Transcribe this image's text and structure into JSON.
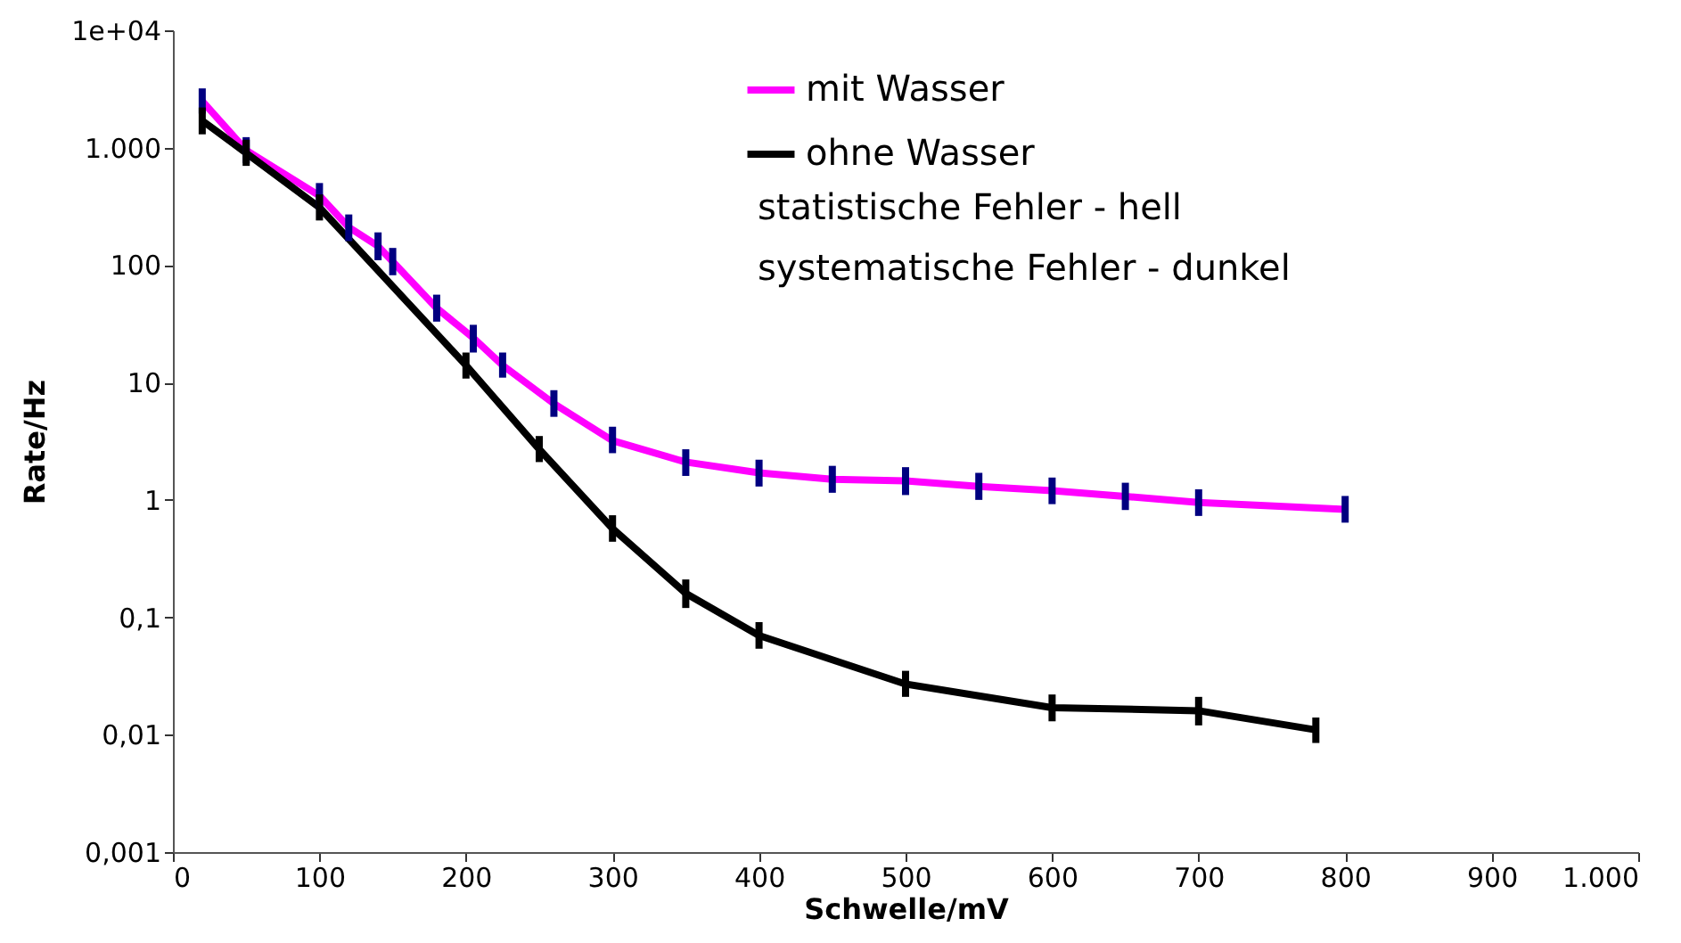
{
  "chart_data": {
    "type": "line",
    "xlabel": "Schwelle/mV",
    "ylabel": "Rate/Hz",
    "log": "y",
    "xlim": [
      0,
      1000
    ],
    "xticks": [
      0,
      100,
      200,
      300,
      400,
      500,
      600,
      700,
      800,
      900,
      {
        "value": 1000,
        "label": "1.000"
      }
    ],
    "ylim": [
      0.001,
      10000
    ],
    "yticks": [
      {
        "value": 0.001,
        "label": "0,001"
      },
      {
        "value": 0.01,
        "label": "0,01"
      },
      {
        "value": 0.1,
        "label": "0,1"
      },
      1,
      10,
      100,
      {
        "value": 1000,
        "label": "1.000"
      },
      {
        "value": 10000,
        "label": "1e+04"
      }
    ],
    "grid": false,
    "legend": "top",
    "marker": "none",
    "line_style": "solid",
    "annotations": [
      "statistische Fehler - hell",
      "systematische Fehler - dunkel"
    ],
    "series": [
      {
        "name": "mit Wasser",
        "color": "#ff00ff",
        "x": [
          20,
          50,
          100,
          120,
          140,
          150,
          180,
          205,
          225,
          260,
          300,
          350,
          400,
          450,
          500,
          550,
          600,
          650,
          700,
          800
        ],
        "values": [
          2500,
          950,
          390,
          210,
          145,
          107,
          43,
          24,
          14,
          6.6,
          3.2,
          2.1,
          1.7,
          1.5,
          1.45,
          1.3,
          1.2,
          1.07,
          0.95,
          0.83
        ],
        "errors": [
          [
            1950,
            3200
          ],
          [
            740,
            1230
          ],
          [
            300,
            500
          ],
          [
            160,
            270
          ],
          [
            110,
            190
          ],
          [
            82,
            140
          ],
          [
            33,
            56
          ],
          [
            18,
            31
          ],
          [
            11,
            18
          ],
          [
            5.1,
            8.6
          ],
          [
            2.5,
            4.2
          ],
          [
            1.6,
            2.7
          ],
          [
            1.3,
            2.2
          ],
          [
            1.15,
            1.95
          ],
          [
            1.1,
            1.9
          ],
          [
            1.0,
            1.7
          ],
          [
            0.92,
            1.55
          ],
          [
            0.82,
            1.4
          ],
          [
            0.73,
            1.23
          ],
          [
            0.64,
            1.08
          ]
        ]
      },
      {
        "name": "ohne Wasser",
        "color": "#000000",
        "x": [
          20,
          50,
          100,
          200,
          250,
          300,
          350,
          400,
          500,
          600,
          700,
          780
        ],
        "values": [
          1700,
          900,
          310,
          14,
          2.7,
          0.57,
          0.16,
          0.07,
          0.027,
          0.017,
          0.016,
          0.011
        ],
        "errors": [
          [
            1300,
            2200
          ],
          [
            700,
            1170
          ],
          [
            240,
            400
          ],
          [
            10.8,
            18
          ],
          [
            2.1,
            3.5
          ],
          [
            0.44,
            0.74
          ],
          [
            0.12,
            0.21
          ],
          [
            0.054,
            0.091
          ],
          [
            0.021,
            0.035
          ],
          [
            0.013,
            0.022
          ],
          [
            0.012,
            0.021
          ],
          [
            0.0085,
            0.014
          ]
        ]
      }
    ]
  }
}
